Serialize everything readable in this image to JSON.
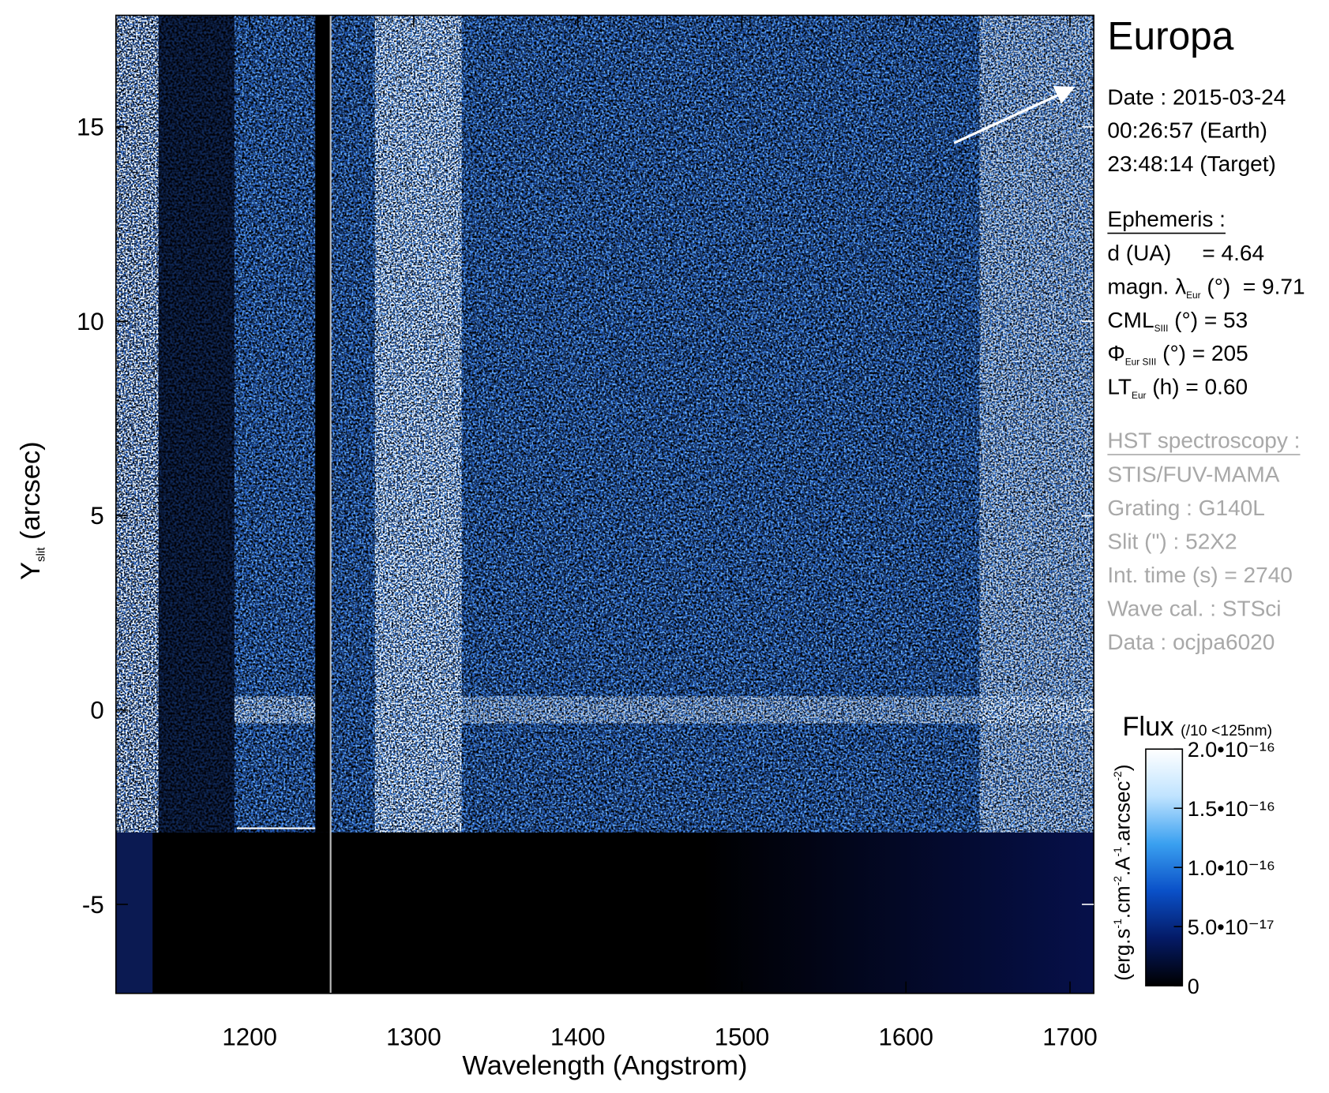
{
  "chart_data": {
    "type": "image",
    "xlabel": "Wavelength (Angstrom)",
    "ylabel": [
      {
        "text": "Y"
      },
      {
        "text": "slit",
        "sub": true
      },
      {
        "text": " (arcsec)"
      }
    ],
    "xlim": [
      1118.5,
      1714.5
    ],
    "ylim": [
      -7.29,
      17.87
    ],
    "xticks": [
      1200,
      1300,
      1400,
      1500,
      1600,
      1700
    ],
    "yticks": [
      -5,
      0,
      5,
      10,
      15
    ],
    "colorbar": {
      "title": "Flux",
      "note": "(/10 <125nm)",
      "label": [
        {
          "text": "(erg.s"
        },
        {
          "text": "-1",
          "sup": true
        },
        {
          "text": ".cm"
        },
        {
          "text": "-2",
          "sup": true
        },
        {
          "text": ".A"
        },
        {
          "text": "-1",
          "sup": true
        },
        {
          "text": ".arcsec"
        },
        {
          "text": "-2",
          "sup": true
        },
        {
          "text": ")"
        }
      ],
      "lim": [
        0,
        2e-16
      ],
      "ticks": [
        0,
        {
          "value": 5e-17,
          "label": "5.0•10⁻¹⁷"
        },
        {
          "value": 1e-16,
          "label": "1.0•10⁻¹⁶"
        },
        {
          "value": 1.5e-16,
          "label": "1.5•10⁻¹⁶"
        },
        {
          "value": 2e-16,
          "label": "2.0•10⁻¹⁶"
        }
      ],
      "colors": [
        "#000000",
        "#041a66",
        "#0a50c8",
        "#3aa0f0",
        "#bfe3ff",
        "#ffffff"
      ]
    }
  },
  "panel": {
    "title": "Europa",
    "date": [
      "Date : 2015-03-24",
      "00:26:57 (Earth)",
      "23:48:14 (Target)"
    ],
    "ephemeris": {
      "heading": "Ephemeris :",
      "lines": [
        [
          {
            "text": "d (UA)     = 4.64"
          }
        ],
        [
          {
            "text": "magn. "
          },
          {
            "text": "λ"
          },
          {
            "text": "Eur",
            "sub": true
          },
          {
            "text": " (°)  = 9.71"
          }
        ],
        [
          {
            "text": "CML"
          },
          {
            "text": "SIII",
            "sub": true
          },
          {
            "text": " (°) = 53"
          }
        ],
        [
          {
            "text": "Φ"
          },
          {
            "text": "Eur SIII",
            "sub": true
          },
          {
            "text": " (°) = 205"
          }
        ],
        [
          {
            "text": "LT"
          },
          {
            "text": "Eur",
            "sub": true
          },
          {
            "text": " (h) = 0.60"
          }
        ]
      ]
    },
    "observation": {
      "heading": "HST spectroscopy :",
      "lines": [
        "STIS/FUV-MAMA",
        "Grating : G140L",
        "Slit (\") : 52X2",
        "Int. time (s) = 2740",
        "Wave cal. : STSci",
        "Data : ocjpa6020"
      ]
    }
  }
}
